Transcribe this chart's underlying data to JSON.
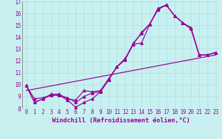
{
  "background_color": "#c8f0f0",
  "grid_color": "#aadddd",
  "line_color": "#990099",
  "xlabel": "Windchill (Refroidissement éolien,°C)",
  "xlim": [
    -0.5,
    23.5
  ],
  "ylim": [
    8,
    17
  ],
  "yticks": [
    8,
    9,
    10,
    11,
    12,
    13,
    14,
    15,
    16,
    17
  ],
  "xticks": [
    0,
    1,
    2,
    3,
    4,
    5,
    6,
    7,
    8,
    9,
    10,
    11,
    12,
    13,
    14,
    15,
    16,
    17,
    18,
    19,
    20,
    21,
    22,
    23
  ],
  "line1_x": [
    0,
    1,
    2,
    3,
    4,
    5,
    6,
    7,
    8,
    9,
    10,
    11,
    12,
    13,
    14,
    15,
    16,
    17,
    18,
    19,
    20,
    21,
    22,
    23
  ],
  "line1_y": [
    9.9,
    8.5,
    8.8,
    9.1,
    9.1,
    8.7,
    8.1,
    8.5,
    8.8,
    9.4,
    10.4,
    11.5,
    12.1,
    13.5,
    14.3,
    15.1,
    16.4,
    16.7,
    15.8,
    15.2,
    14.7,
    12.5,
    12.5,
    12.7
  ],
  "line2_x": [
    0,
    1,
    2,
    3,
    4,
    5,
    6,
    7,
    8,
    9,
    10,
    11,
    12,
    13,
    14,
    15,
    16,
    17,
    18,
    19,
    20,
    21,
    22,
    23
  ],
  "line2_y": [
    9.9,
    8.5,
    8.8,
    9.2,
    9.2,
    8.8,
    8.7,
    9.5,
    9.4,
    9.5,
    10.5,
    11.5,
    12.2,
    13.4,
    14.4,
    15.1,
    16.4,
    16.7,
    15.8,
    15.2,
    14.7,
    12.5,
    12.5,
    12.7
  ],
  "line3_x": [
    0,
    1,
    2,
    3,
    4,
    5,
    6,
    7,
    8,
    9,
    10,
    11,
    12,
    13,
    14,
    15,
    16,
    17,
    18,
    19,
    20,
    21,
    22,
    23
  ],
  "line3_y": [
    9.9,
    8.8,
    8.9,
    9.1,
    9.1,
    8.9,
    8.5,
    9.0,
    9.3,
    9.4,
    10.4,
    11.5,
    12.1,
    13.4,
    13.5,
    15.1,
    16.3,
    16.7,
    15.8,
    15.2,
    14.8,
    12.5,
    12.5,
    12.7
  ],
  "line4_x": [
    0,
    23
  ],
  "line4_y": [
    9.5,
    12.5
  ],
  "marker": "^",
  "marker_size": 2.5,
  "linewidth": 0.9,
  "xlabel_fontsize": 6.5,
  "tick_fontsize": 5.5,
  "font_family": "monospace"
}
